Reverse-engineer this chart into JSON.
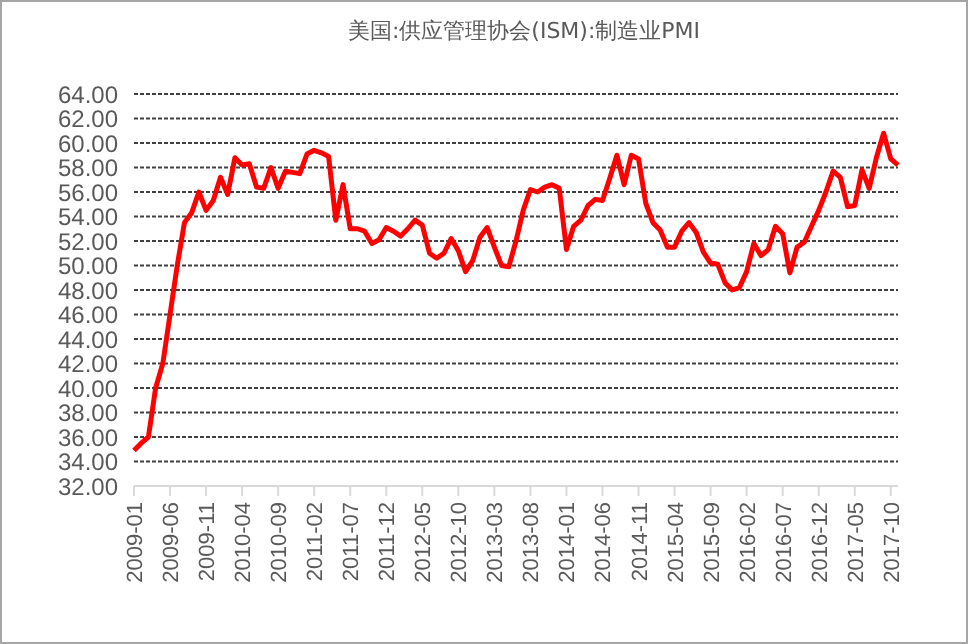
{
  "chart_data": {
    "type": "line",
    "title": "美国:供应管理协会(ISM):制造业PMI",
    "categories": [
      "2009-01",
      null,
      null,
      null,
      null,
      "2009-06",
      null,
      null,
      null,
      null,
      "2009-11",
      null,
      null,
      null,
      null,
      "2010-04",
      null,
      null,
      null,
      null,
      "2010-09",
      null,
      null,
      null,
      null,
      "2011-02",
      null,
      null,
      null,
      null,
      "2011-07",
      null,
      null,
      null,
      null,
      "2011-12",
      null,
      null,
      null,
      null,
      "2012-05",
      null,
      null,
      null,
      null,
      "2012-10",
      null,
      null,
      null,
      null,
      "2013-03",
      null,
      null,
      null,
      null,
      "2013-08",
      null,
      null,
      null,
      null,
      "2014-01",
      null,
      null,
      null,
      null,
      "2014-06",
      null,
      null,
      null,
      null,
      "2014-11",
      null,
      null,
      null,
      null,
      "2015-04",
      null,
      null,
      null,
      null,
      "2015-09",
      null,
      null,
      null,
      null,
      "2016-02",
      null,
      null,
      null,
      null,
      "2016-07",
      null,
      null,
      null,
      null,
      "2016-12",
      null,
      null,
      null,
      null,
      "2017-05",
      null,
      null,
      null,
      null,
      "2017-10",
      null
    ],
    "series": [
      {
        "color": "#ff0000",
        "values": [
          34.9,
          35.5,
          36.0,
          40,
          42,
          46,
          50,
          53.5,
          54.3,
          56.0,
          54.5,
          55.3,
          57.2,
          55.8,
          58.8,
          58.2,
          58.3,
          56.4,
          56.3,
          58.0,
          56.3,
          57.7,
          57.6,
          57.5,
          59.1,
          59.4,
          59.2,
          58.9,
          53.7,
          56.6,
          53.0,
          53.0,
          52.8,
          51.8,
          52.1,
          53.1,
          52.8,
          52.4,
          53.0,
          53.7,
          53.3,
          51.0,
          50.6,
          51.0,
          52.2,
          51.2,
          49.5,
          50.4,
          52.3,
          53.1,
          51.5,
          50.0,
          49.9,
          52,
          54.5,
          56.2,
          56.0,
          56.4,
          56.6,
          56.3,
          51.3,
          53.2,
          53.7,
          54.9,
          55.4,
          55.3,
          57.1,
          59.0,
          56.6,
          59.0,
          58.7,
          55.1,
          53.5,
          52.9,
          51.5,
          51.5,
          52.8,
          53.5,
          52.7,
          51.1,
          50.2,
          50.1,
          48.6,
          48.0,
          48.2,
          49.5,
          51.8,
          50.8,
          51.3,
          53.2,
          52.6,
          49.4,
          51.5,
          51.9,
          53.2,
          54.5,
          56.0,
          57.7,
          57.2,
          54.8,
          54.9,
          57.8,
          56.3,
          58.8,
          60.8,
          58.7,
          58.2
        ]
      }
    ],
    "ylim": [
      32,
      64
    ],
    "yticks": [
      {
        "value": 32,
        "label": "32.00"
      },
      {
        "value": 34,
        "label": "34.00"
      },
      {
        "value": 36,
        "label": "36.00"
      },
      {
        "value": 38,
        "label": "38.00"
      },
      {
        "value": 40,
        "label": "40.00"
      },
      {
        "value": 42,
        "label": "42.00"
      },
      {
        "value": 44,
        "label": "44.00"
      },
      {
        "value": 46,
        "label": "46.00"
      },
      {
        "value": 48,
        "label": "48.00"
      },
      {
        "value": 50,
        "label": "50.00"
      },
      {
        "value": 52,
        "label": "52.00"
      },
      {
        "value": 54,
        "label": "54.00"
      },
      {
        "value": 56,
        "label": "56.00"
      },
      {
        "value": 58,
        "label": "58.00"
      },
      {
        "value": 60,
        "label": "60.00"
      },
      {
        "value": 62,
        "label": "62.00"
      },
      {
        "value": 64,
        "label": "64.00"
      }
    ],
    "grid": "y",
    "legend": false,
    "marker": "none",
    "line_style": "solid"
  }
}
